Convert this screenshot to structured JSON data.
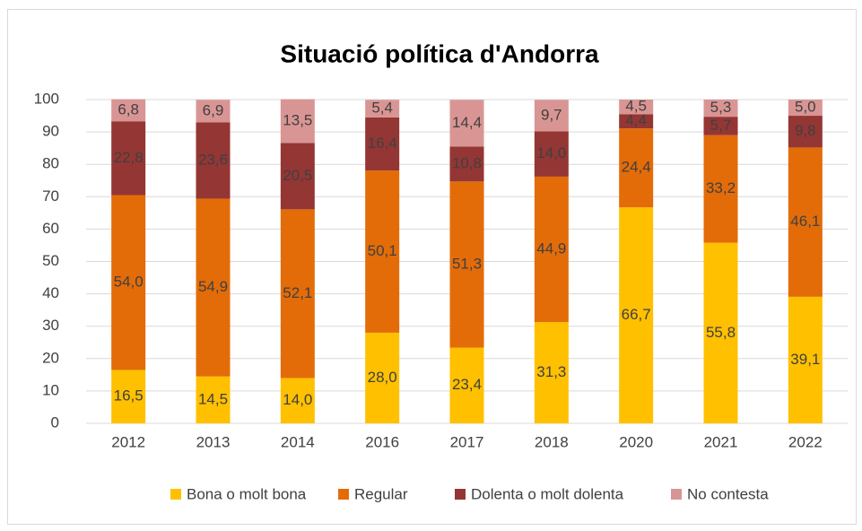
{
  "chart_data": {
    "type": "stacked_bar",
    "title": "Situació política d'Andorra",
    "categories": [
      "2012",
      "2013",
      "2014",
      "2016",
      "2017",
      "2018",
      "2020",
      "2021",
      "2022"
    ],
    "ylim": [
      0,
      100
    ],
    "yticks": [
      0,
      10,
      20,
      30,
      40,
      50,
      60,
      70,
      80,
      90,
      100
    ],
    "grid": true,
    "legend": "bottom",
    "series": [
      {
        "name": "Bona o molt bona",
        "color": "#FFC000",
        "values": [
          16.5,
          14.5,
          14.0,
          28.0,
          23.4,
          31.3,
          66.7,
          55.8,
          39.1
        ],
        "value_labels": [
          "16,5",
          "14,5",
          "14,0",
          "28,0",
          "23,4",
          "31,3",
          "66,7",
          "55,8",
          "39,1"
        ]
      },
      {
        "name": "Regular",
        "color": "#E36C09",
        "values": [
          54.0,
          54.9,
          52.1,
          50.1,
          51.3,
          44.9,
          24.4,
          33.2,
          46.1
        ],
        "value_labels": [
          "54,0",
          "54,9",
          "52,1",
          "50,1",
          "51,3",
          "44,9",
          "24,4",
          "33,2",
          "46,1"
        ]
      },
      {
        "name": "Dolenta o molt dolenta",
        "color": "#943634",
        "values": [
          22.8,
          23.6,
          20.5,
          16.4,
          10.8,
          14.0,
          4.4,
          5.7,
          9.8
        ],
        "value_labels": [
          "22,8",
          "23,6",
          "20,5",
          "16,4",
          "10,8",
          "14,0",
          "4,4",
          "5,7",
          "9,8"
        ]
      },
      {
        "name": "No contesta",
        "color": "#D99594",
        "values": [
          6.8,
          6.9,
          13.5,
          5.4,
          14.4,
          9.7,
          4.5,
          5.3,
          5.0
        ],
        "value_labels": [
          "6,8",
          "6,9",
          "13,5",
          "5,4",
          "14,4",
          "9,7",
          "4,5",
          "5,3",
          "5,0"
        ]
      }
    ]
  }
}
